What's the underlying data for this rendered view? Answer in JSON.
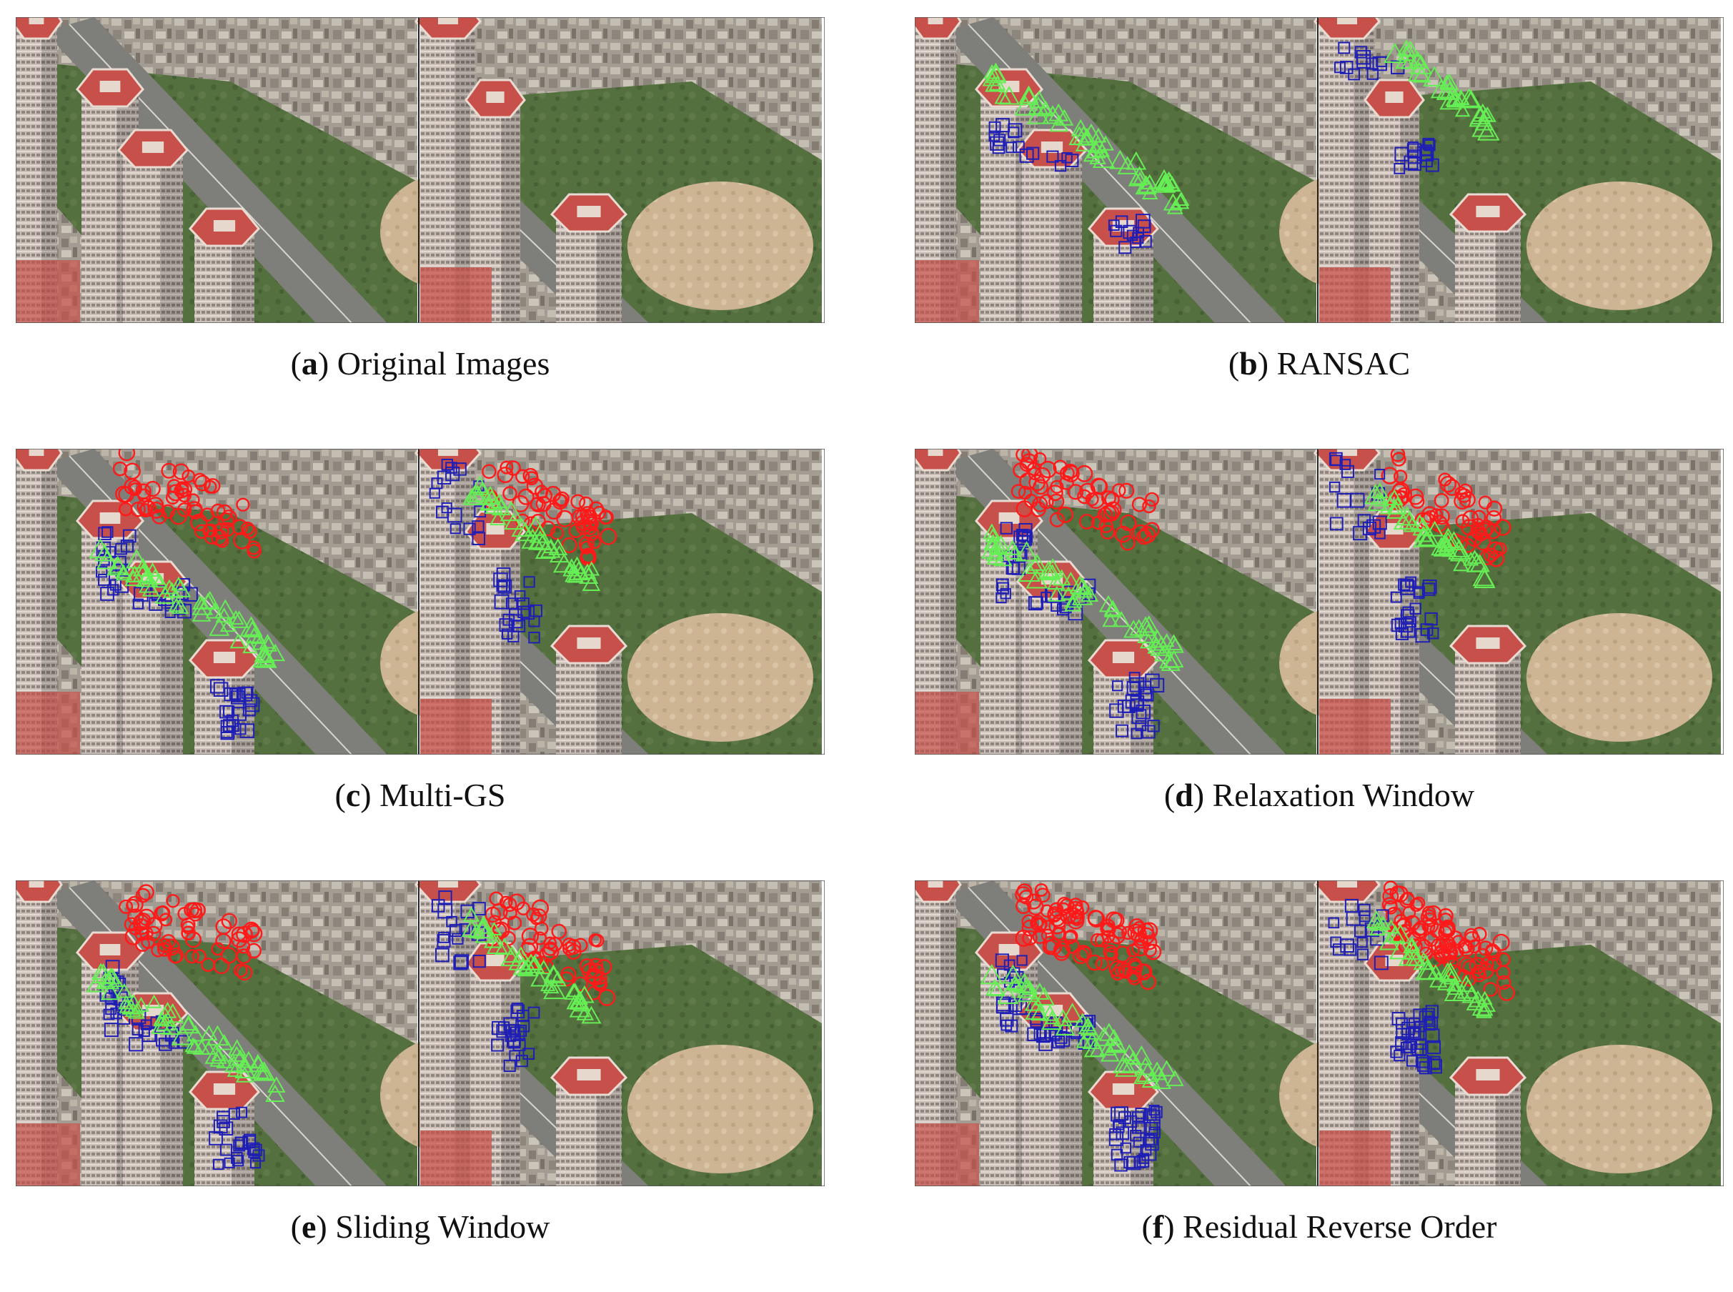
{
  "figure": {
    "panels": [
      {
        "id": "a",
        "letter": "a",
        "title": "Original Images",
        "groups": []
      },
      {
        "id": "b",
        "letter": "b",
        "title": "RANSAC",
        "groups": [
          "blue-squares",
          "green-triangles"
        ]
      },
      {
        "id": "c",
        "letter": "c",
        "title": "Multi-GS",
        "groups": [
          "red-circles",
          "blue-squares",
          "green-triangles"
        ]
      },
      {
        "id": "d",
        "letter": "d",
        "title": "Relaxation Window",
        "groups": [
          "red-circles",
          "blue-squares",
          "green-triangles"
        ]
      },
      {
        "id": "e",
        "letter": "e",
        "title": "Sliding Window",
        "groups": [
          "red-circles",
          "blue-squares",
          "green-triangles"
        ]
      },
      {
        "id": "f",
        "letter": "f",
        "title": "Residual Reverse Order",
        "groups": [
          "red-circles",
          "blue-squares",
          "green-triangles"
        ]
      }
    ]
  },
  "colors": {
    "red_marker": "#ff1a1a",
    "blue_marker": "#1f1fb5",
    "green_marker": "#66ee55",
    "building_facade": "#c9bcb4",
    "roof": "#c8504a",
    "vegetation": "#4f6a3c",
    "road": "#7e7e7a",
    "dirt_field": "#c8b090",
    "town": "#9a948a"
  }
}
